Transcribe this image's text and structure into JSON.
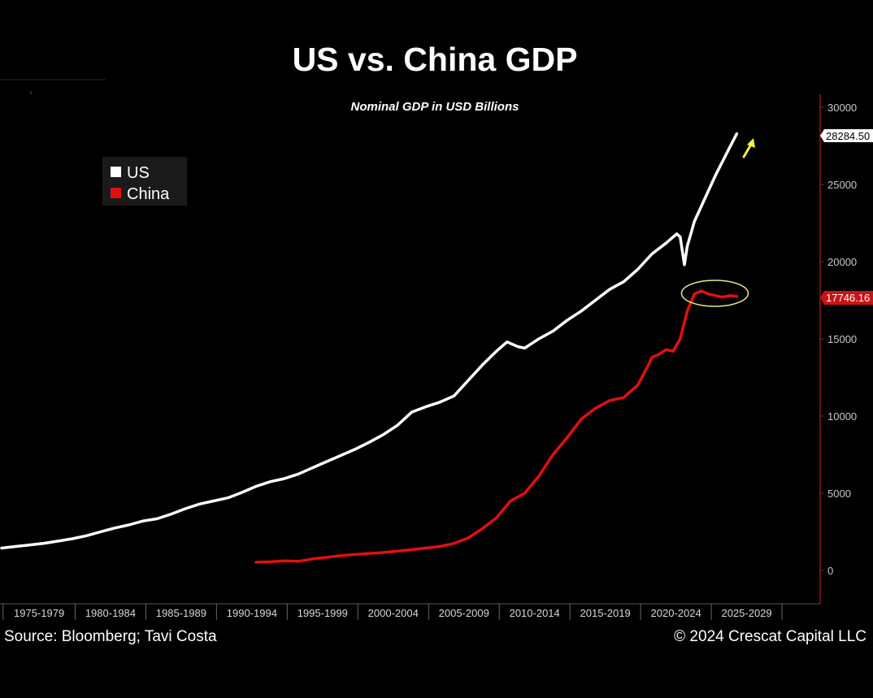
{
  "chart_data": {
    "type": "line",
    "title": "US vs. China GDP",
    "subtitle": "Nominal GDP in USD Billions",
    "xlabel": "",
    "ylabel": "",
    "x_categories": [
      "1975-1979",
      "1980-1984",
      "1985-1989",
      "1990-1994",
      "1995-1999",
      "2000-2004",
      "2005-2009",
      "2010-2014",
      "2015-2019",
      "2020-2024",
      "2025-2029"
    ],
    "xlim": [
      1971.9,
      2030
    ],
    "ylim": [
      -2200,
      31000
    ],
    "y_ticks": [
      0,
      5000,
      10000,
      15000,
      20000,
      25000,
      30000
    ],
    "y_tick_labels": [
      "0",
      "5000",
      "10000",
      "15000",
      "20000",
      "25000",
      "30000"
    ],
    "legend": [
      "US",
      "China"
    ],
    "legend_position": "top-left",
    "colors": {
      "us": "#ffffff",
      "china": "#e01010",
      "axis": "#8b1a1a",
      "highlight": "#e8e88c",
      "arrow": "#f4ee4a"
    },
    "series": [
      {
        "name": "US",
        "color": "#ffffff",
        "end_label": "28284.50",
        "x": [
          1972,
          1973,
          1974,
          1975,
          1976,
          1977,
          1978,
          1979,
          1980,
          1981,
          1982,
          1983,
          1984,
          1985,
          1986,
          1987,
          1988,
          1989,
          1990,
          1991,
          1992,
          1993,
          1994,
          1995,
          1996,
          1997,
          1998,
          1999,
          2000,
          2001,
          2002,
          2003,
          2004,
          2005,
          2006,
          2007,
          2007.75,
          2008,
          2008.5,
          2009,
          2009.5,
          2010,
          2011,
          2012,
          2013,
          2014,
          2015,
          2016,
          2017,
          2018,
          2019,
          2019.75,
          2020,
          2020.3,
          2020.5,
          2020.75,
          2021,
          2021.5,
          2022,
          2022.5,
          2023,
          2023.5,
          2024
        ],
        "y": [
          1450,
          1550,
          1650,
          1760,
          1900,
          2050,
          2250,
          2500,
          2750,
          2950,
          3200,
          3350,
          3650,
          4000,
          4300,
          4500,
          4700,
          5050,
          5450,
          5750,
          5950,
          6250,
          6650,
          7050,
          7450,
          7850,
          8300,
          8800,
          9400,
          10250,
          10600,
          10900,
          11300,
          12300,
          13300,
          14200,
          14800,
          14700,
          14500,
          14400,
          14700,
          15000,
          15500,
          16200,
          16800,
          17500,
          18200,
          18700,
          19500,
          20500,
          21200,
          21800,
          21600,
          19800,
          21000,
          21800,
          22600,
          23600,
          24600,
          25600,
          26500,
          27400,
          28284.5
        ]
      },
      {
        "name": "China",
        "color": "#e01010",
        "end_label": "17746.16",
        "x": [
          1990,
          1991,
          1992,
          1993,
          1994,
          1995,
          1996,
          1997,
          1998,
          1999,
          2000,
          2001,
          2002,
          2003,
          2004,
          2005,
          2006,
          2007,
          2008,
          2009,
          2010,
          2011,
          2012,
          2013,
          2014,
          2015,
          2016,
          2017,
          2017.75,
          2018,
          2018.5,
          2019,
          2019.5,
          2020,
          2020.5,
          2021,
          2021.5,
          2022,
          2022.5,
          2023,
          2023.5,
          2024
        ],
        "y": [
          530,
          560,
          620,
          590,
          750,
          850,
          960,
          1030,
          1100,
          1160,
          1250,
          1340,
          1450,
          1550,
          1750,
          2100,
          2700,
          3400,
          4500,
          5000,
          6100,
          7500,
          8600,
          9800,
          10500,
          11000,
          11200,
          12000,
          13300,
          13800,
          14000,
          14300,
          14200,
          15000,
          16800,
          17900,
          18100,
          17900,
          17800,
          17700,
          17800,
          17746.16
        ]
      }
    ],
    "annotations": [
      "ellipse highlighting China 2021-2024 plateau",
      "yellow arrow pointing up-right at US series end"
    ]
  },
  "footer": {
    "source": "Source: Bloomberg; Tavi Costa",
    "copyright": "© 2024 Crescat Capital LLC"
  }
}
